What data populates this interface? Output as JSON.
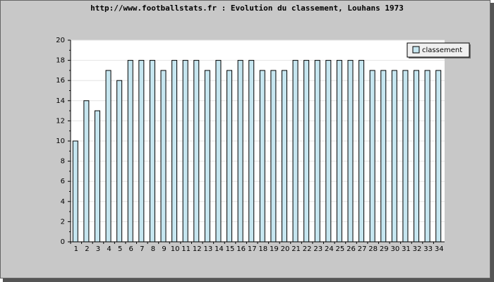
{
  "chart_data": {
    "type": "bar",
    "title": "http://www.footballstats.fr : Evolution du classement, Louhans 1973",
    "categories": [
      "1",
      "2",
      "3",
      "4",
      "5",
      "6",
      "7",
      "8",
      "9",
      "10",
      "11",
      "12",
      "13",
      "14",
      "15",
      "16",
      "17",
      "18",
      "19",
      "20",
      "21",
      "22",
      "23",
      "24",
      "25",
      "26",
      "27",
      "28",
      "29",
      "30",
      "31",
      "32",
      "33",
      "34"
    ],
    "series": [
      {
        "name": "classement",
        "color": "#c6e6f0",
        "values": [
          10,
          14,
          13,
          17,
          16,
          18,
          18,
          18,
          17,
          18,
          18,
          18,
          17,
          18,
          17,
          18,
          18,
          17,
          17,
          17,
          18,
          18,
          18,
          18,
          18,
          18,
          18,
          17,
          17,
          17,
          17,
          17,
          17,
          17
        ]
      }
    ],
    "ylim": [
      0,
      20
    ],
    "yticks": [
      0,
      2,
      4,
      6,
      8,
      10,
      12,
      14,
      16,
      18,
      20
    ],
    "grid": true,
    "legend": "top-right"
  }
}
